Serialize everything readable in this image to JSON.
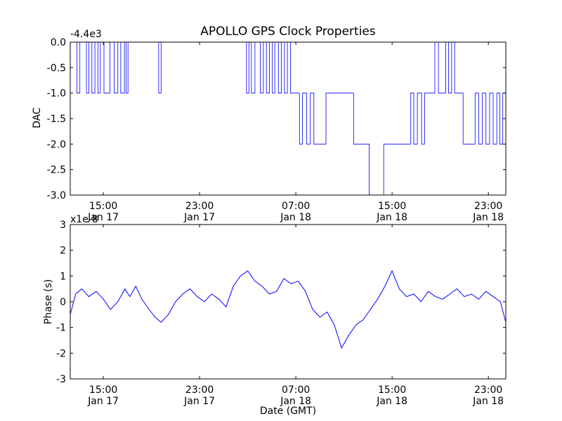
{
  "title": "APOLLO GPS Clock Properties",
  "x_axis": {
    "label": "Date (GMT)",
    "ticks": [
      {
        "time": "15:00",
        "date": "Jan 17"
      },
      {
        "time": "23:00",
        "date": "Jan 17"
      },
      {
        "time": "07:00",
        "date": "Jan 18"
      },
      {
        "time": "15:00",
        "date": "Jan 18"
      },
      {
        "time": "23:00",
        "date": "Jan 18"
      }
    ],
    "range_hours": [
      -2.75,
      33.45
    ]
  },
  "colors": {
    "line": "#0000ff",
    "axes": "#000000",
    "background": "#ffffff"
  },
  "chart_data": [
    {
      "type": "line",
      "name": "dac-panel",
      "ylabel": "DAC",
      "offset_text": "-4.4e3",
      "yticks": [
        -3.0,
        -2.5,
        -2.0,
        -1.5,
        -1.0,
        -0.5,
        0.0
      ],
      "ytick_labels": [
        "-3.0",
        "-2.5",
        "-2.0",
        "-1.5",
        "-1.0",
        "-0.5",
        "0.0"
      ],
      "ylim": [
        -3.0,
        0.0
      ],
      "series": [
        {
          "x": [
            -2.75,
            -2.2,
            -1.95,
            -1.4,
            -1.2,
            -0.95,
            -0.7,
            -0.45,
            -0.25,
            0.05,
            0.55,
            0.9,
            1.2,
            1.45,
            1.75,
            1.9,
            2.05,
            2.25,
            4.6,
            4.8,
            11.9,
            12.1,
            12.3,
            12.6,
            13.05,
            13.3,
            13.55,
            13.8,
            14.05,
            14.25,
            14.55,
            14.8,
            15.05,
            15.3,
            15.55,
            16.05,
            16.3,
            16.55,
            16.9,
            17.2,
            17.5,
            18.5,
            20.8,
            22.1,
            23.3,
            25.25,
            25.55,
            25.8,
            26.1,
            26.45,
            26.7,
            26.95,
            27.55,
            27.85,
            28.45,
            28.7,
            28.95,
            29.2,
            29.6,
            29.9,
            30.9,
            31.2,
            31.5,
            31.8,
            32.1,
            32.4,
            32.7,
            32.95,
            33.2,
            33.45
          ],
          "y": [
            0,
            -1,
            0,
            -1,
            0,
            -1,
            0,
            -1,
            0,
            -1,
            0,
            -1,
            0,
            -1,
            0,
            -1,
            0,
            0,
            -1,
            0,
            -1,
            0,
            -1,
            0,
            -1,
            0,
            -1,
            0,
            -1,
            0,
            -1,
            0,
            -1,
            0,
            -1,
            -1,
            -2,
            -1,
            -2,
            -1,
            -2,
            -1,
            -2,
            -3,
            -2,
            -2,
            -1,
            -2,
            -1,
            -2,
            -1,
            -1,
            0,
            -1,
            0,
            -1,
            0,
            -1,
            -1,
            -2,
            -1,
            -2,
            -1,
            -2,
            -1,
            -2,
            -1,
            -2,
            -1,
            -2
          ]
        }
      ]
    },
    {
      "type": "line",
      "name": "phase-panel",
      "ylabel": "Phase (s)",
      "offset_text": "x1e-8",
      "yticks": [
        -3,
        -2,
        -1,
        0,
        1,
        2,
        3
      ],
      "ytick_labels": [
        "-3",
        "-2",
        "-1",
        "0",
        "1",
        "2",
        "3"
      ],
      "ylim": [
        -3,
        3
      ],
      "series": [
        {
          "x": [
            -2.75,
            -2.3,
            -1.8,
            -1.2,
            -0.6,
            0.0,
            0.6,
            1.2,
            1.8,
            2.2,
            2.7,
            3.2,
            3.8,
            4.3,
            4.8,
            5.4,
            6.0,
            6.6,
            7.2,
            7.8,
            8.4,
            9.0,
            9.6,
            10.2,
            10.8,
            11.4,
            12.0,
            12.6,
            13.2,
            13.8,
            14.4,
            15.0,
            15.6,
            16.2,
            16.8,
            17.4,
            18.0,
            18.6,
            19.2,
            19.8,
            20.4,
            21.0,
            21.6,
            22.2,
            22.8,
            23.4,
            24.0,
            24.6,
            25.2,
            25.8,
            26.4,
            27.0,
            27.6,
            28.2,
            28.8,
            29.4,
            30.0,
            30.6,
            31.2,
            31.8,
            32.4,
            33.0,
            33.45
          ],
          "y": [
            -0.5,
            0.3,
            0.5,
            0.2,
            0.4,
            0.1,
            -0.3,
            0.0,
            0.5,
            0.2,
            0.6,
            0.1,
            -0.3,
            -0.6,
            -0.8,
            -0.5,
            0.0,
            0.3,
            0.5,
            0.2,
            0.0,
            0.3,
            0.1,
            -0.2,
            0.6,
            1.0,
            1.2,
            0.8,
            0.6,
            0.3,
            0.4,
            0.9,
            0.7,
            0.8,
            0.4,
            -0.3,
            -0.6,
            -0.4,
            -0.9,
            -1.8,
            -1.3,
            -0.9,
            -0.7,
            -0.3,
            0.1,
            0.6,
            1.2,
            0.5,
            0.2,
            0.3,
            0.0,
            0.4,
            0.2,
            0.1,
            0.3,
            0.5,
            0.2,
            0.3,
            0.1,
            0.4,
            0.2,
            0.0,
            -0.8
          ]
        }
      ]
    }
  ]
}
